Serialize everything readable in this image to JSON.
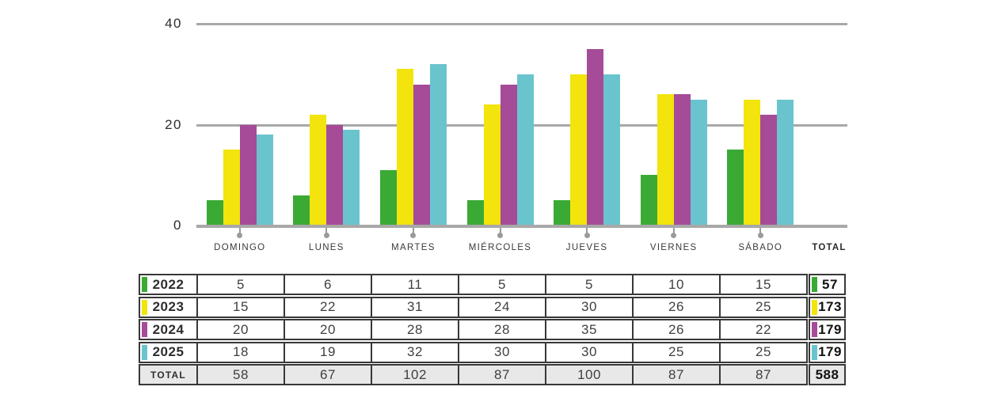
{
  "colors": {
    "green": "#3aaa35",
    "yellow": "#f2e40c",
    "purple": "#a54b97",
    "cyan": "#6ac4ce",
    "gridline": "#a8a8a8",
    "tick": "#9a9a9a",
    "table_border": "#383838",
    "total_row_bg": "#e8e8e8",
    "value_text": "#404040"
  },
  "chart_data": {
    "type": "bar",
    "title": "",
    "categories": [
      "DOMINGO",
      "LUNES",
      "MARTES",
      "MIÉRCOLES",
      "JUEVES",
      "VIERNES",
      "SÁBADO"
    ],
    "series": [
      {
        "name": "2022",
        "color_key": "green",
        "values": [
          5,
          6,
          11,
          5,
          5,
          10,
          15
        ],
        "total": 57
      },
      {
        "name": "2023",
        "color_key": "yellow",
        "values": [
          15,
          22,
          31,
          24,
          30,
          26,
          25
        ],
        "total": 173
      },
      {
        "name": "2024",
        "color_key": "purple",
        "values": [
          20,
          20,
          28,
          28,
          35,
          26,
          22
        ],
        "total": 179
      },
      {
        "name": "2025",
        "color_key": "cyan",
        "values": [
          18,
          19,
          32,
          30,
          30,
          25,
          25
        ],
        "total": 179
      }
    ],
    "column_totals": [
      58,
      67,
      102,
      87,
      100,
      87,
      87
    ],
    "grand_total": 588,
    "total_header": "TOTAL",
    "xlabel": "",
    "ylabel": "",
    "y_ticks": [
      40,
      20,
      0
    ],
    "ylim": [
      0,
      40
    ],
    "grid": true,
    "legend_position": "table-row-headers"
  },
  "table": {
    "total_row_label": "TOTAL"
  }
}
